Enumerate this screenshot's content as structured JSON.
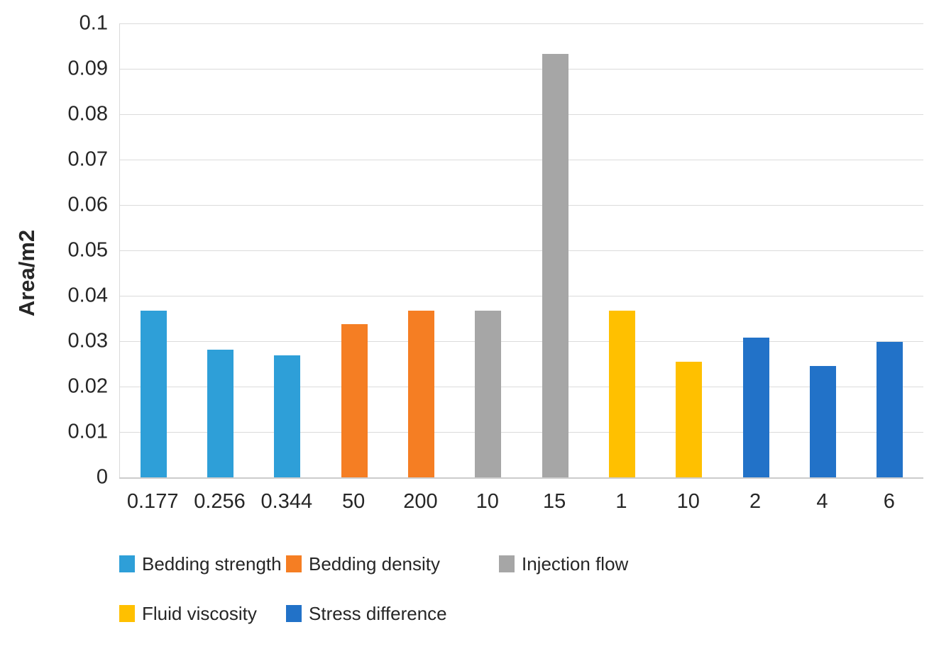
{
  "chart_data": {
    "type": "bar",
    "title": "",
    "xlabel": "",
    "ylabel": "Area/m2",
    "ylim": [
      0,
      0.1
    ],
    "ytick_interval": 0.01,
    "ytick_labels": [
      "0",
      "0.01",
      "0.02",
      "0.03",
      "0.04",
      "0.05",
      "0.06",
      "0.07",
      "0.08",
      "0.09",
      "0.1"
    ],
    "grid": "horizontal",
    "legend_position": "bottom",
    "categories": [
      "0.177",
      "0.256",
      "0.344",
      "50",
      "200",
      "10",
      "15",
      "1",
      "10",
      "2",
      "4",
      "6"
    ],
    "values": [
      0.0367,
      0.0281,
      0.0268,
      0.0337,
      0.0367,
      0.0367,
      0.0933,
      0.0367,
      0.0255,
      0.0308,
      0.0245,
      0.0298
    ],
    "bar_group_index": [
      0,
      0,
      0,
      1,
      1,
      2,
      2,
      3,
      3,
      4,
      4,
      4
    ],
    "series": [
      {
        "name": "Bedding strength",
        "color": "#2E9FD8",
        "categories": [
          "0.177",
          "0.256",
          "0.344"
        ],
        "values": [
          0.0367,
          0.0281,
          0.0268
        ]
      },
      {
        "name": "Bedding density",
        "color": "#F57E23",
        "categories": [
          "50",
          "200"
        ],
        "values": [
          0.0337,
          0.0367
        ]
      },
      {
        "name": "Injection flow",
        "color": "#A6A6A6",
        "categories": [
          "10",
          "15"
        ],
        "values": [
          0.0367,
          0.0933
        ]
      },
      {
        "name": "Fluid viscosity",
        "color": "#FFC000",
        "categories": [
          "1",
          "10"
        ],
        "values": [
          0.0367,
          0.0255
        ]
      },
      {
        "name": "Stress difference",
        "color": "#2272C8",
        "categories": [
          "2",
          "4",
          "6"
        ],
        "values": [
          0.0308,
          0.0245,
          0.0298
        ]
      }
    ],
    "legend_rows": [
      [
        0,
        1,
        2
      ],
      [
        3,
        4
      ]
    ],
    "colors": {
      "background": "#FFFFFF",
      "gridline": "#DBDBDB",
      "axis_line": "#CCCCCC",
      "text": "#262626"
    }
  }
}
